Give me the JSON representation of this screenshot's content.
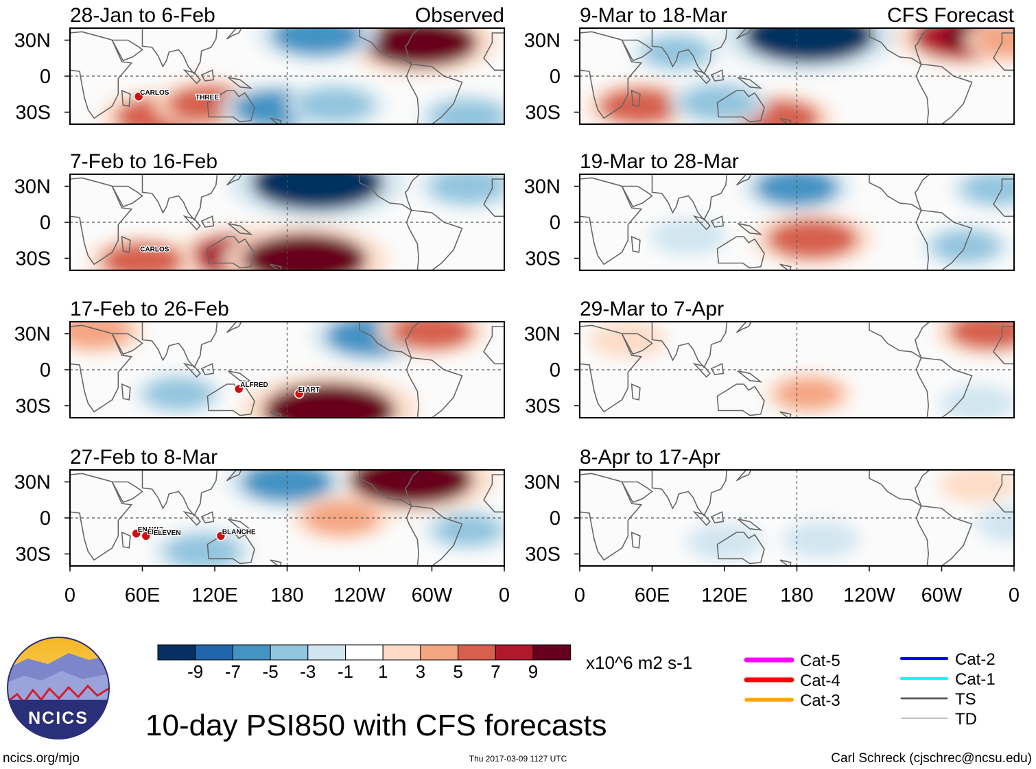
{
  "title": "10-day PSI850 with CFS forecasts",
  "footer": {
    "left": "ncics.org/mjo",
    "center": "Thu 2017-03-09 1127 UTC",
    "right": "Carl Schreck (cjschrec@ncsu.edu)"
  },
  "logo": {
    "text": "NCICS"
  },
  "colors": {
    "negative": [
      "#053061",
      "#2166ac",
      "#4393c3",
      "#92c5de",
      "#d1e5f0"
    ],
    "neutral": "#ffffff",
    "positive": [
      "#fddbc7",
      "#f4a582",
      "#d6604d",
      "#b2182b",
      "#67001f"
    ],
    "land_outline": "#666666"
  },
  "chart_data": {
    "type": "heatmap",
    "variable": "PSI850 anomaly",
    "units": "x10^6 m2 s-1",
    "colorbar": {
      "boundaries": [
        -11,
        -9,
        -7,
        -5,
        -3,
        -1,
        1,
        3,
        5,
        7,
        9,
        11
      ],
      "tick_labels": [
        "-9",
        "-7",
        "-5",
        "-3",
        "-1",
        "1",
        "3",
        "5",
        "7",
        "9"
      ]
    },
    "x_ticks": [
      "0",
      "60E",
      "120E",
      "180",
      "120W",
      "60W",
      "0"
    ],
    "y_ticks": [
      "30N",
      "0",
      "30S"
    ],
    "lat_range": [
      -40,
      40
    ],
    "lon_range": [
      0,
      360
    ],
    "column_labels": {
      "left": "Observed",
      "right": "CFS Forecast"
    },
    "panels": [
      {
        "id": "obs1",
        "period": "28-Jan to 6-Feb",
        "source": "Observed",
        "storms": [
          {
            "name": "CARLOS",
            "lon": 57,
            "lat": -17,
            "marker": true
          },
          {
            "name": "THREE",
            "lon": 103,
            "lat": -21,
            "marker": false
          }
        ],
        "anomalies": [
          {
            "lon": 290,
            "lat": 28,
            "value": 9
          },
          {
            "lon": 205,
            "lat": 34,
            "value": -6
          },
          {
            "lon": 75,
            "lat": -34,
            "value": 6
          },
          {
            "lon": 115,
            "lat": -23,
            "value": 5
          },
          {
            "lon": 170,
            "lat": -27,
            "value": -5
          },
          {
            "lon": 220,
            "lat": -24,
            "value": -4
          },
          {
            "lon": 330,
            "lat": -34,
            "value": -4
          }
        ]
      },
      {
        "id": "obs2",
        "period": "7-Feb to 16-Feb",
        "source": "Observed",
        "storms": [
          {
            "name": "CARLOS",
            "lon": 57,
            "lat": -26,
            "marker": false
          }
        ],
        "anomalies": [
          {
            "lon": 205,
            "lat": 33,
            "value": -11
          },
          {
            "lon": 140,
            "lat": -28,
            "value": 7
          },
          {
            "lon": 195,
            "lat": -31,
            "value": 10
          },
          {
            "lon": 60,
            "lat": -32,
            "value": 5
          },
          {
            "lon": 330,
            "lat": 30,
            "value": -4
          }
        ]
      },
      {
        "id": "obs3",
        "period": "17-Feb to 26-Feb",
        "source": "Observed",
        "storms": [
          {
            "name": "ALFRED",
            "lon": 140,
            "lat": -16,
            "marker": true
          },
          {
            "name": "BART",
            "lon": 190,
            "lat": -20,
            "marker": true
          },
          {
            "name": "EI",
            "lon": 188,
            "lat": -20,
            "marker": false
          }
        ],
        "anomalies": [
          {
            "lon": 250,
            "lat": 28,
            "value": -6
          },
          {
            "lon": 215,
            "lat": -34,
            "value": 11
          },
          {
            "lon": 300,
            "lat": 32,
            "value": 5
          },
          {
            "lon": 90,
            "lat": -20,
            "value": -3
          },
          {
            "lon": 20,
            "lat": 32,
            "value": 4
          }
        ]
      },
      {
        "id": "obs4",
        "period": "27-Feb to 8-Mar",
        "source": "Observed",
        "storms": [
          {
            "name": "ENAWO",
            "lon": 55,
            "lat": -13,
            "marker": true
          },
          {
            "name": "ENAWO",
            "lon": 63,
            "lat": -15,
            "marker": true
          },
          {
            "name": "ELEVEN",
            "lon": 68,
            "lat": -16,
            "marker": false
          },
          {
            "name": "BLANCHE",
            "lon": 125,
            "lat": -15,
            "marker": true
          }
        ],
        "anomalies": [
          {
            "lon": 283,
            "lat": 32,
            "value": 10
          },
          {
            "lon": 180,
            "lat": 30,
            "value": -6
          },
          {
            "lon": 110,
            "lat": -28,
            "value": -4
          },
          {
            "lon": 330,
            "lat": -10,
            "value": -3
          },
          {
            "lon": 225,
            "lat": 0,
            "value": 4
          }
        ]
      },
      {
        "id": "fcst1",
        "period": "9-Mar to 18-Mar",
        "source": "CFS Forecast",
        "storms": [],
        "anomalies": [
          {
            "lon": 190,
            "lat": 34,
            "value": -11
          },
          {
            "lon": 320,
            "lat": 33,
            "value": 8
          },
          {
            "lon": 50,
            "lat": -25,
            "value": 5
          },
          {
            "lon": 165,
            "lat": -35,
            "value": 5
          },
          {
            "lon": 115,
            "lat": -22,
            "value": -4
          },
          {
            "lon": 80,
            "lat": 20,
            "value": -3
          },
          {
            "lon": 360,
            "lat": 30,
            "value": 4
          }
        ]
      },
      {
        "id": "fcst2",
        "period": "19-Mar to 28-Mar",
        "source": "CFS Forecast",
        "storms": [],
        "anomalies": [
          {
            "lon": 180,
            "lat": 29,
            "value": -5
          },
          {
            "lon": 193,
            "lat": -14,
            "value": 6
          },
          {
            "lon": 345,
            "lat": 28,
            "value": -3
          },
          {
            "lon": 320,
            "lat": -20,
            "value": -3
          },
          {
            "lon": 90,
            "lat": -12,
            "value": -2
          }
        ]
      },
      {
        "id": "fcst3",
        "period": "29-Mar to 7-Apr",
        "source": "CFS Forecast",
        "storms": [],
        "anomalies": [
          {
            "lon": 340,
            "lat": 32,
            "value": 5
          },
          {
            "lon": 190,
            "lat": -20,
            "value": 3
          },
          {
            "lon": 40,
            "lat": 25,
            "value": 2
          },
          {
            "lon": 330,
            "lat": -28,
            "value": -2
          }
        ]
      },
      {
        "id": "fcst4",
        "period": "8-Apr to 17-Apr",
        "source": "CFS Forecast",
        "storms": [],
        "anomalies": [
          {
            "lon": 330,
            "lat": 28,
            "value": 2
          },
          {
            "lon": 120,
            "lat": -20,
            "value": -2
          },
          {
            "lon": 200,
            "lat": -18,
            "value": -2
          },
          {
            "lon": 360,
            "lat": -5,
            "value": -2
          }
        ]
      }
    ],
    "track_legend": [
      {
        "label": "Cat-5",
        "color": "#ff00ff",
        "weight": 5
      },
      {
        "label": "Cat-4",
        "color": "#ff0000",
        "weight": 5
      },
      {
        "label": "Cat-3",
        "color": "#ffa500",
        "weight": 4
      },
      {
        "label": "Cat-2",
        "color": "#0000ff",
        "weight": 3
      },
      {
        "label": "Cat-1",
        "color": "#00ffff",
        "weight": 3
      },
      {
        "label": "TS",
        "color": "#555555",
        "weight": 2
      },
      {
        "label": "TD",
        "color": "#aaaaaa",
        "weight": 1
      }
    ]
  }
}
